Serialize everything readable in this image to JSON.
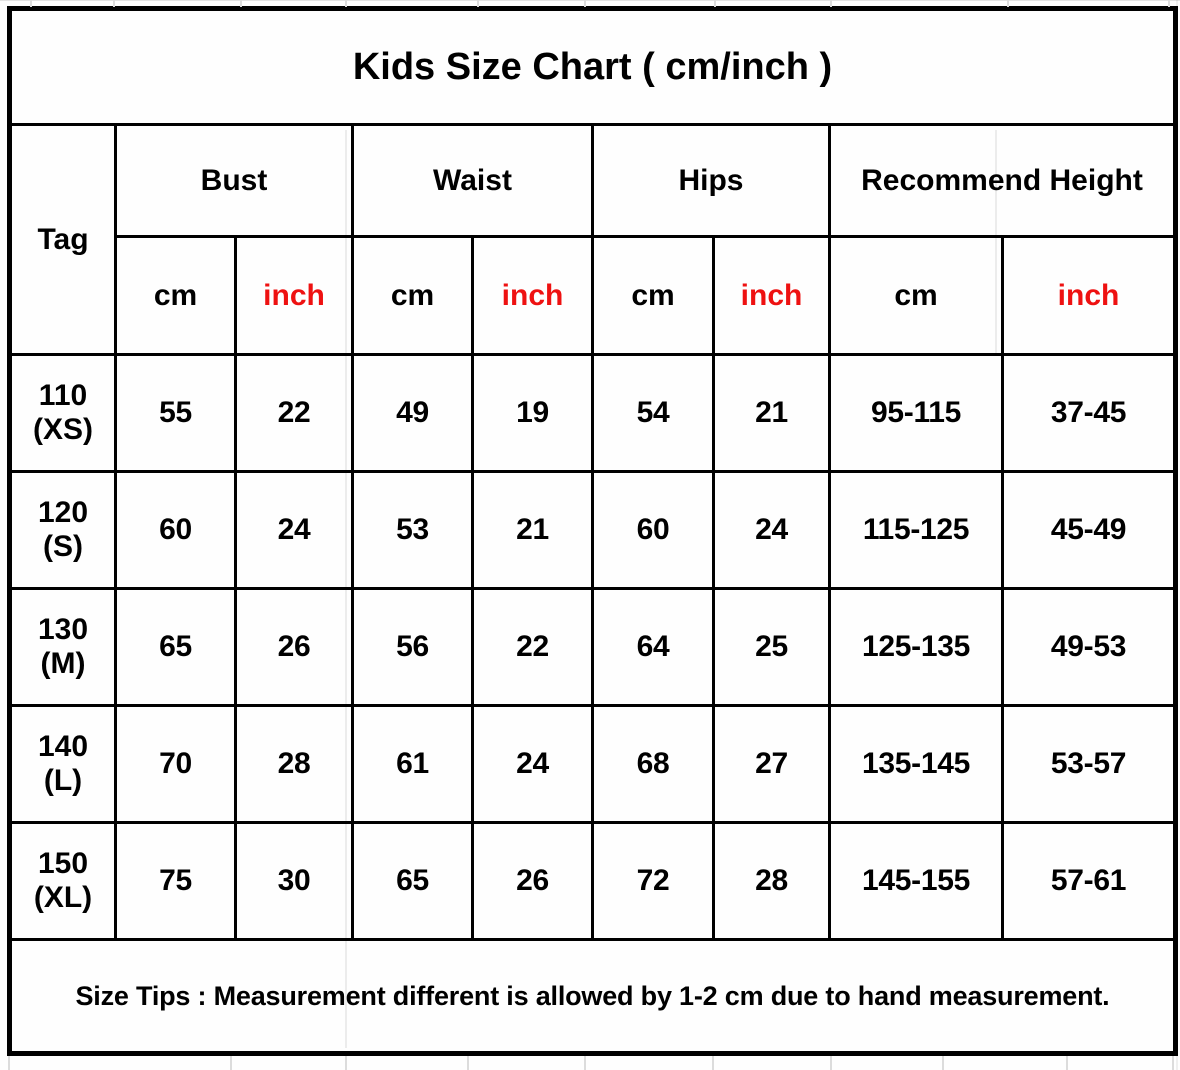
{
  "title": "Kids Size Chart ( cm/inch )",
  "colors": {
    "accent_red": "#ee1111",
    "text": "#000000",
    "border": "#000000"
  },
  "table": {
    "tag_header": "Tag",
    "groups": [
      {
        "label": "Bust"
      },
      {
        "label": "Waist"
      },
      {
        "label": "Hips"
      },
      {
        "label": "Recommend Height"
      }
    ],
    "unit_cm": "cm",
    "unit_inch": "inch",
    "rows": [
      {
        "tag": "110",
        "size": "(XS)",
        "bust_cm": "55",
        "bust_inch": "22",
        "waist_cm": "49",
        "waist_inch": "19",
        "hips_cm": "54",
        "hips_inch": "21",
        "height_cm": "95-115",
        "height_inch": "37-45"
      },
      {
        "tag": "120",
        "size": "(S)",
        "bust_cm": "60",
        "bust_inch": "24",
        "waist_cm": "53",
        "waist_inch": "21",
        "hips_cm": "60",
        "hips_inch": "24",
        "height_cm": "115-125",
        "height_inch": "45-49"
      },
      {
        "tag": "130",
        "size": "(M)",
        "bust_cm": "65",
        "bust_inch": "26",
        "waist_cm": "56",
        "waist_inch": "22",
        "hips_cm": "64",
        "hips_inch": "25",
        "height_cm": "125-135",
        "height_inch": "49-53"
      },
      {
        "tag": "140",
        "size": "(L)",
        "bust_cm": "70",
        "bust_inch": "28",
        "waist_cm": "61",
        "waist_inch": "24",
        "hips_cm": "68",
        "hips_inch": "27",
        "height_cm": "135-145",
        "height_inch": "53-57"
      },
      {
        "tag": "150",
        "size": "(XL)",
        "bust_cm": "75",
        "bust_inch": "30",
        "waist_cm": "65",
        "waist_inch": "26",
        "hips_cm": "72",
        "hips_inch": "28",
        "height_cm": "145-155",
        "height_inch": "57-61"
      }
    ],
    "tips": "Size Tips : Measurement different is allowed by 1-2 cm due to hand measurement."
  },
  "chart_data": {
    "type": "table",
    "title": "Kids Size Chart ( cm/inch )",
    "columns": [
      "Tag",
      "Bust cm",
      "Bust inch",
      "Waist cm",
      "Waist inch",
      "Hips cm",
      "Hips inch",
      "Recommend Height cm",
      "Recommend Height inch"
    ],
    "rows": [
      [
        "110 (XS)",
        55,
        22,
        49,
        19,
        54,
        21,
        "95-115",
        "37-45"
      ],
      [
        "120 (S)",
        60,
        24,
        53,
        21,
        60,
        24,
        "115-125",
        "45-49"
      ],
      [
        "130 (M)",
        65,
        26,
        56,
        22,
        64,
        25,
        "125-135",
        "49-53"
      ],
      [
        "140 (L)",
        70,
        28,
        61,
        24,
        68,
        27,
        "135-145",
        "53-57"
      ],
      [
        "150 (XL)",
        75,
        30,
        65,
        26,
        72,
        28,
        "145-155",
        "57-61"
      ]
    ],
    "note": "Size Tips : Measurement different is allowed by 1-2 cm due to hand measurement."
  }
}
